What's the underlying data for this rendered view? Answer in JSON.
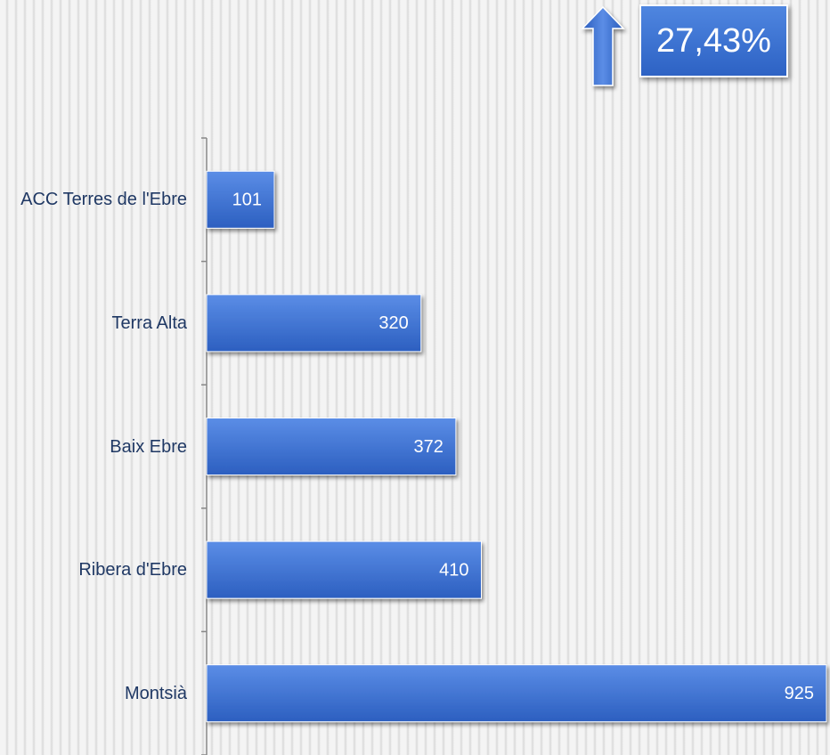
{
  "chart_data": {
    "type": "bar",
    "orientation": "horizontal",
    "annotation": "27,43%",
    "categories": [
      "ACC Terres de l'Ebre",
      "Terra Alta",
      "Baix Ebre",
      "Ribera d'Ebre",
      "Montsià"
    ],
    "values": [
      101,
      320,
      372,
      410,
      925
    ],
    "color": "#3a6fd0",
    "xlim": [
      0,
      925
    ]
  }
}
